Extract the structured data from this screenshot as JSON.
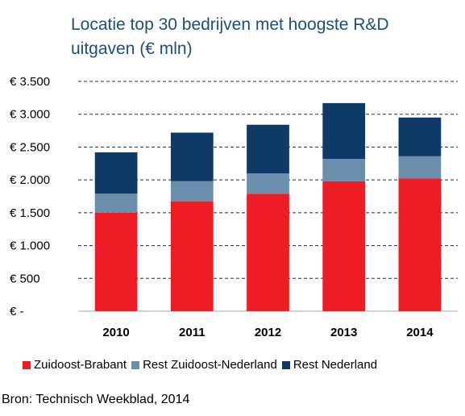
{
  "title": "Locatie top 30 bedrijven met hoogste R&D uitgaven (€ mln)",
  "source": "Bron: Technisch Weekblad, 2014",
  "chart_data": {
    "type": "bar",
    "stacked": true,
    "title": "Locatie top 30 bedrijven met hoogste R&D uitgaven (€ mln)",
    "categories": [
      "2010",
      "2011",
      "2012",
      "2013",
      "2014"
    ],
    "series": [
      {
        "name": "Zuidoost-Brabant",
        "color": "#ee1c25",
        "values": [
          1500,
          1670,
          1790,
          1980,
          2020
        ]
      },
      {
        "name": "Rest Zuidoost-Nederland",
        "color": "#6c8ead",
        "values": [
          290,
          310,
          310,
          340,
          340
        ]
      },
      {
        "name": "Rest Nederland",
        "color": "#0f3a66",
        "values": [
          630,
          740,
          740,
          850,
          590
        ]
      }
    ],
    "y_ticks": [
      0,
      500,
      1000,
      1500,
      2000,
      2500,
      3000,
      3500
    ],
    "y_tick_labels": [
      "€ -",
      "€ 500",
      "€ 1.000",
      "€ 1.500",
      "€ 2.000",
      "€ 2.500",
      "€ 3.000",
      "€ 3.500"
    ],
    "ylim": [
      0,
      3500
    ],
    "grid": "horizontal-dashed",
    "legend_position": "bottom"
  }
}
